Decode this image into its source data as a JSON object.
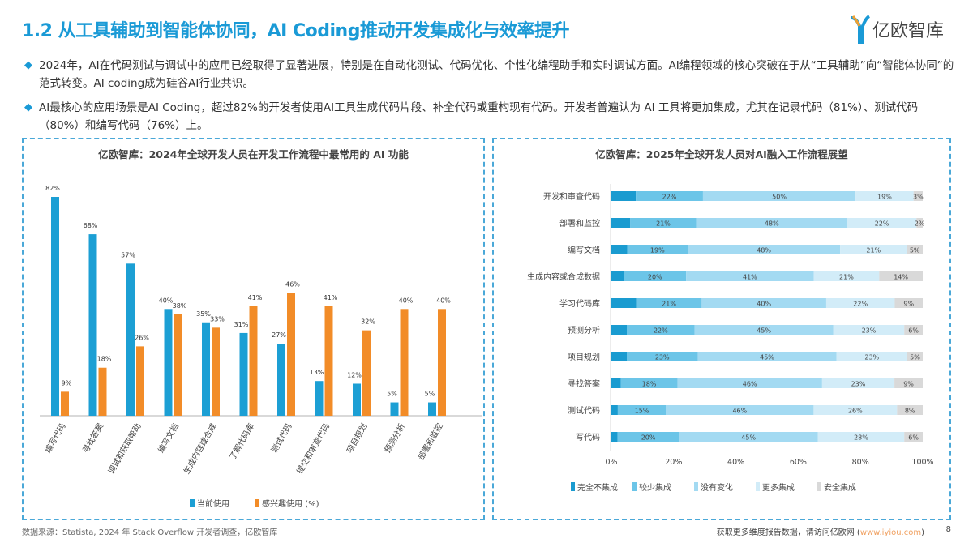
{
  "header": {
    "title": "1.2 从工具辅助到智能体协同，AI Coding推动开发集成化与效率提升",
    "logo_text": "亿欧智库"
  },
  "bullets": [
    "2024年，AI在代码测试与调试中的应用已经取得了显著进展，特别是在自动化测试、代码优化、个性化编程助手和实时调试方面。AI编程领域的核心突破在于从“工具辅助”向“智能体协同”的范式转变。AI coding成为硅谷AI行业共识。",
    "AI最核心的应用场景是AI Coding，超过82%的开发者使用AI工具生成代码片段、补全代码或重构现有代码。开发者普遍认为 AI 工具将更加集成，尤其在记录代码（81%）、测试代码（80%）和编写代码（76%）上。"
  ],
  "chart_data": [
    {
      "type": "bar",
      "title": "亿欧智库：2024年全球开发人员在开发工作流程中最常用的 AI 功能",
      "categories": [
        "编写代码",
        "寻找答案",
        "调试和获取帮助",
        "编写文档",
        "生成内容或合成",
        "了解代码库",
        "测试代码",
        "提交和审查代码",
        "项目规划",
        "预测分析",
        "部署和监控"
      ],
      "series": [
        {
          "name": "当前使用",
          "color": "#1c9fd4",
          "values": [
            82,
            68,
            57,
            40,
            35,
            31,
            27,
            13,
            12,
            5,
            5
          ]
        },
        {
          "name": "感兴趣使用 (%)",
          "color": "#f28c28",
          "values": [
            9,
            18,
            26,
            38,
            33,
            41,
            46,
            41,
            32,
            40,
            40
          ]
        }
      ],
      "ylim": [
        0,
        90
      ],
      "value_suffix": "%",
      "legend": "bottom",
      "grid": false
    },
    {
      "type": "bar",
      "orientation": "horizontal-stacked",
      "title": "亿欧智库：2025年全球开发人员对AI融入工作流程展望",
      "categories": [
        "开发和审查代码",
        "部署和监控",
        "编写文档",
        "生成内容或合成数据",
        "学习代码库",
        "预测分析",
        "项目规划",
        "寻找答案",
        "测试代码",
        "写代码"
      ],
      "series": [
        {
          "name": "完全不集成",
          "color": "#1a9bd0",
          "values": [
            8,
            6,
            5,
            4,
            8,
            5,
            5,
            3,
            2,
            2
          ],
          "labeled": false
        },
        {
          "name": "较少集成",
          "color": "#6cc5e8",
          "values": [
            22,
            21,
            19,
            20,
            21,
            22,
            23,
            18,
            15,
            20
          ],
          "labeled": true
        },
        {
          "name": "没有变化",
          "color": "#a3daf2",
          "values": [
            50,
            48,
            48,
            41,
            40,
            45,
            45,
            46,
            46,
            45
          ],
          "labeled": true
        },
        {
          "name": "更多集成",
          "color": "#d2ecf8",
          "values": [
            19,
            22,
            21,
            21,
            22,
            23,
            23,
            23,
            26,
            28
          ],
          "labeled": true
        },
        {
          "name": "安全集成",
          "color": "#d9d9d9",
          "values": [
            3,
            2,
            5,
            14,
            9,
            6,
            5,
            9,
            8,
            6
          ],
          "labeled": true
        }
      ],
      "xlim": [
        0,
        100
      ],
      "xticks": [
        "0%",
        "20%",
        "40%",
        "60%",
        "80%",
        "100%"
      ],
      "value_suffix": "%",
      "legend": "bottom",
      "grid": false
    }
  ],
  "footer": {
    "source": "数据来源：Statista, 2024 年 Stack Overflow 开发者调查，亿欧智库",
    "cta": "获取更多维度报告数据，请访问亿欧网 (",
    "link": "www.iyiou.com",
    "cta_end": ")",
    "page": "8"
  }
}
